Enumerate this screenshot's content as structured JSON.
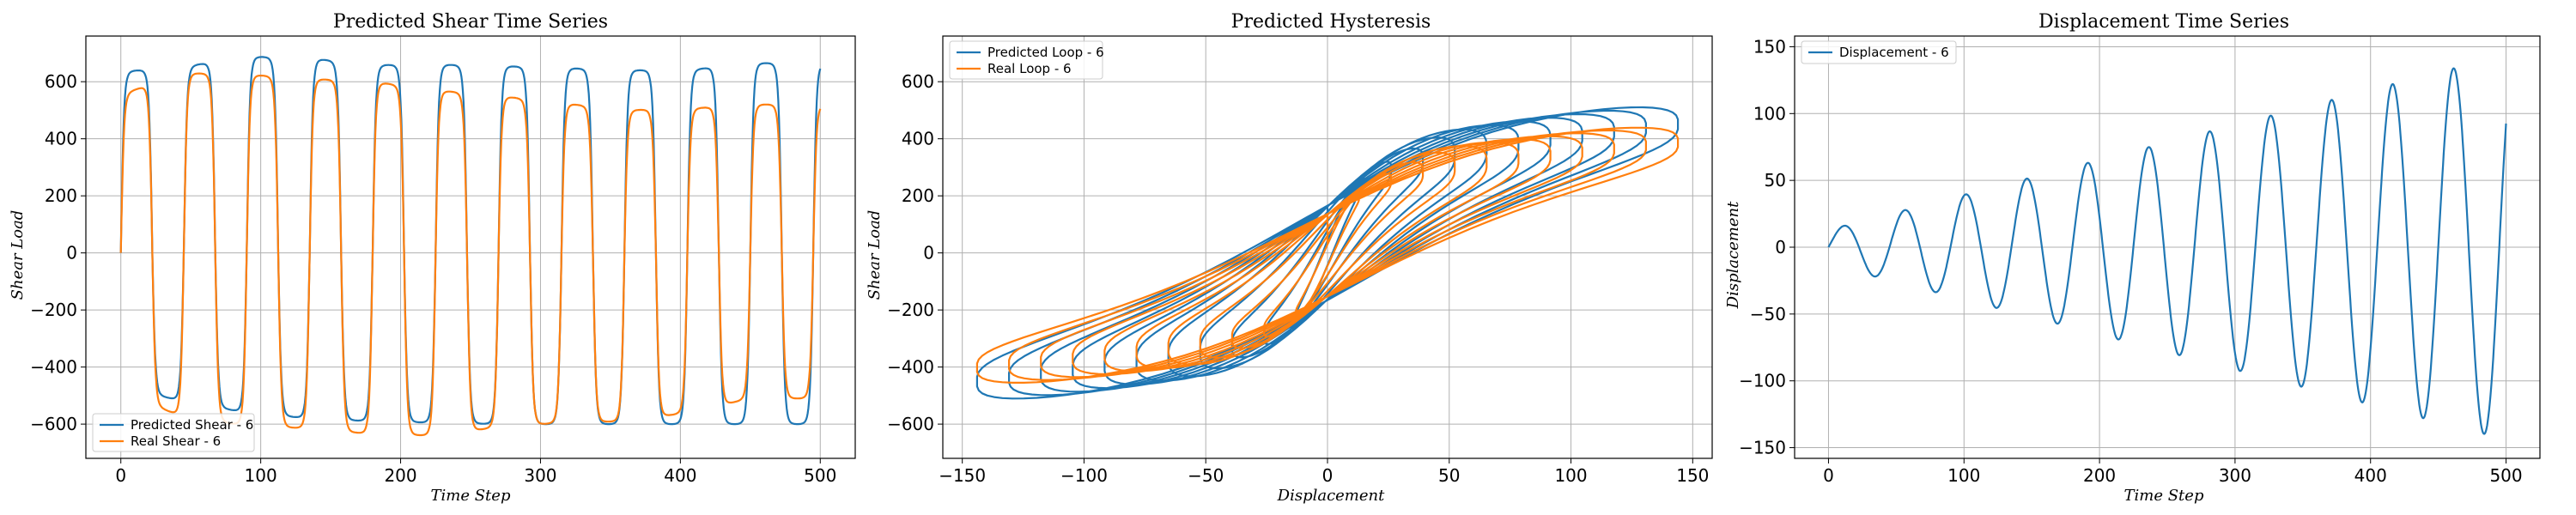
{
  "colors": {
    "predicted": "#1f77b4",
    "real": "#ff7f0e"
  },
  "chart_data": [
    {
      "type": "line",
      "title": "Predicted Shear Time Series",
      "xlabel": "Time Step",
      "ylabel": "Shear Load",
      "xlim": [
        -25,
        525
      ],
      "ylim": [
        -720,
        760
      ],
      "xticks": [
        0,
        100,
        200,
        300,
        400,
        500
      ],
      "yticks": [
        -600,
        -400,
        -200,
        0,
        200,
        400,
        600
      ],
      "grid": true,
      "legend_position": "lower-left",
      "series_shape": "shear",
      "series": [
        {
          "name": "Predicted Shear - 6",
          "color": "predicted",
          "period": 45,
          "start": 0,
          "end": 500,
          "peaks": [
            635,
            652,
            688,
            682,
            658,
            660,
            655,
            648,
            640,
            640,
            665
          ],
          "troughs": [
            -470,
            -520,
            -560,
            -580,
            -590,
            -595,
            -600,
            -600,
            -600,
            -600,
            -600
          ]
        },
        {
          "name": "Real Shear - 6",
          "color": "real",
          "period": 45,
          "start": 0,
          "end": 500,
          "peaks": [
            555,
            630,
            625,
            610,
            600,
            570,
            550,
            525,
            500,
            505,
            520
          ],
          "troughs": [
            -490,
            -575,
            -605,
            -615,
            -635,
            -640,
            -610,
            -595,
            -590,
            -560,
            -510
          ]
        }
      ]
    },
    {
      "type": "line",
      "title": "Predicted Hysteresis",
      "xlabel": "Displacement",
      "ylabel": "Shear Load",
      "xlim": [
        -158,
        158
      ],
      "ylim": [
        -720,
        760
      ],
      "xticks": [
        -150,
        -100,
        -50,
        0,
        50,
        100,
        150
      ],
      "yticks": [
        -600,
        -400,
        -200,
        0,
        200,
        400,
        600
      ],
      "grid": true,
      "legend_position": "upper-left",
      "series_shape": "hysteresis",
      "series": [
        {
          "name": "Predicted Loop - 6",
          "color": "predicted"
        },
        {
          "name": "Real Loop - 6",
          "color": "real"
        }
      ]
    },
    {
      "type": "line",
      "title": "Displacement Time Series",
      "xlabel": "Time Step",
      "ylabel": "Displacement",
      "xlim": [
        -25,
        525
      ],
      "ylim": [
        -158,
        158
      ],
      "xticks": [
        0,
        100,
        200,
        300,
        400,
        500
      ],
      "yticks": [
        -150,
        -100,
        -50,
        0,
        50,
        100,
        150
      ],
      "grid": true,
      "legend_position": "upper-left",
      "series_shape": "displacement",
      "series": [
        {
          "name": "Displacement - 6",
          "color": "predicted",
          "period": 45,
          "start": 0,
          "end": 500,
          "amplitude_start": 13,
          "amplitude_end": 144
        }
      ]
    }
  ]
}
